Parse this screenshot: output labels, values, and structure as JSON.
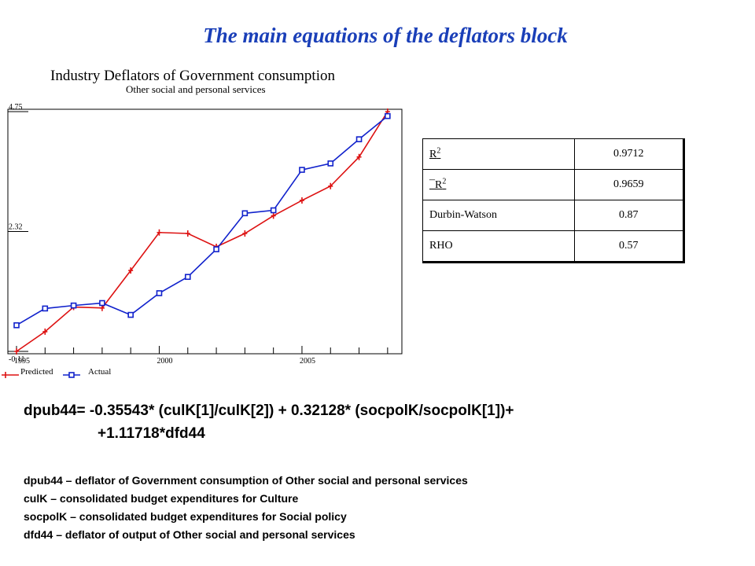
{
  "slide": {
    "title": "The main equations of the deflators block"
  },
  "chart_data": {
    "type": "line",
    "title": "Industry Deflators of Government consumption",
    "subtitle": "Other social and personal services",
    "x": [
      1995,
      1996,
      1997,
      1998,
      1999,
      2000,
      2001,
      2002,
      2003,
      2004,
      2005,
      2006,
      2007,
      2008
    ],
    "x_tick_labels": [
      "1995",
      "2000",
      "2005"
    ],
    "y_tick_labels": [
      "4.75",
      "2.32",
      "-0.11"
    ],
    "ylim": [
      -0.11,
      4.75
    ],
    "xlim": [
      1995,
      2008.5
    ],
    "series": [
      {
        "name": "Predicted",
        "color": "#dd1111",
        "marker": "plus",
        "values": [
          -0.11,
          0.29,
          0.79,
          0.77,
          1.53,
          2.3,
          2.28,
          2.01,
          2.28,
          2.64,
          2.95,
          3.24,
          3.83,
          4.75
        ]
      },
      {
        "name": "Actual",
        "color": "#1122cc",
        "marker": "square",
        "values": [
          0.42,
          0.76,
          0.82,
          0.87,
          0.63,
          1.07,
          1.4,
          1.96,
          2.69,
          2.75,
          3.57,
          3.7,
          4.19,
          4.66
        ]
      }
    ],
    "legend_position": "bottom-left",
    "grid": false
  },
  "stats": {
    "rows": [
      {
        "label": "R2",
        "value": "0.9712"
      },
      {
        "label": "¯R2",
        "value": "0.9659"
      },
      {
        "label": "Durbin-Watson",
        "value": "0.87"
      },
      {
        "label": "RHO",
        "value": "0.57"
      }
    ]
  },
  "equation": {
    "line1": "dpub44= -0.35543* (culK[1]/culK[2]) + 0.32128* (socpolK/socpolK[1])+",
    "line2": "+1.11718*dfd44"
  },
  "definitions": [
    "dpub44 – deflator of Government consumption of Other social and personal services",
    "culK – consolidated budget expenditures for Culture",
    "socpolK – consolidated budget expenditures for Social policy",
    "dfd44 –   deflator of output of Other social and personal services"
  ]
}
